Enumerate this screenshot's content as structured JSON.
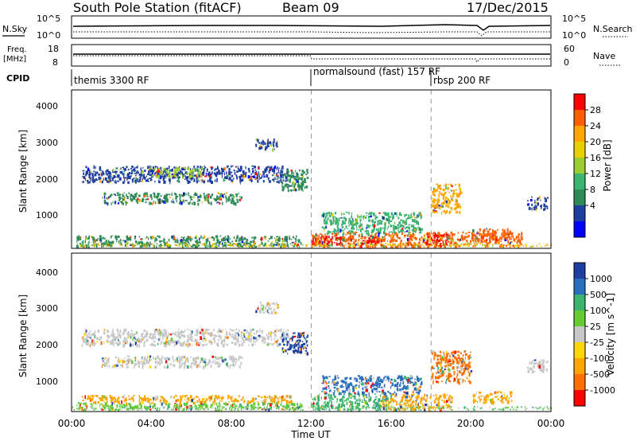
{
  "header": {
    "title": "South Pole Station (fitACF)",
    "beam": "Beam 09",
    "date": "17/Dec/2015"
  },
  "aux_panels": {
    "nsky": {
      "label": "N.Sky",
      "ticks": [
        "10^5",
        "10^0"
      ],
      "right_label": "N.Search",
      "right_ticks": [
        "10^5",
        "10^0"
      ]
    },
    "freq": {
      "label_1": "Freq.",
      "label_2": "[MHz]",
      "ticks": [
        "18",
        "8"
      ],
      "right_label": "Nave",
      "right_ticks": [
        "60",
        "0"
      ]
    },
    "cpid": {
      "label": "CPID",
      "segments": [
        {
          "name": "themis 3300 RF",
          "start_hour": 0
        },
        {
          "name": "normalsound (fast) 157 RF",
          "start_hour": 12
        },
        {
          "name": "rbsp 200 RF",
          "start_hour": 18
        }
      ]
    }
  },
  "colorbars": {
    "power": {
      "label": "Power [dB]",
      "ticks": [
        "28",
        "24",
        "20",
        "16",
        "12",
        "8",
        "4"
      ],
      "colors": [
        "#ff0000",
        "#ff6000",
        "#ffa500",
        "#e8d000",
        "#9acd32",
        "#3cb371",
        "#2e8b57",
        "#1e3fa0",
        "#0000ff"
      ]
    },
    "velocity": {
      "label": "Velocity [m s^-1]",
      "ticks": [
        "1000",
        "500",
        "100",
        "25",
        "-25",
        "-100",
        "-500",
        "-1000"
      ],
      "colors": [
        "#1e3fa0",
        "#2a6fbd",
        "#3cb371",
        "#66cc33",
        "#c8c8c8",
        "#ffd700",
        "#ffa500",
        "#ff7000",
        "#ff0000"
      ]
    }
  },
  "chart_data": [
    {
      "type": "heatmap",
      "name": "power",
      "ylabel": "Slant Range [km]",
      "ylim": [
        180,
        4600
      ],
      "yticks": [
        "4000",
        "3000",
        "2000",
        "1000"
      ],
      "x_range_hours": [
        0,
        24
      ],
      "blobs": [
        {
          "t0": 0.2,
          "t1": 11.5,
          "r0": 250,
          "r1": 550,
          "c": "#2e8b57"
        },
        {
          "t0": 0.5,
          "t1": 10.8,
          "r0": 2050,
          "r1": 2500,
          "c": "#1e3fa0"
        },
        {
          "t0": 4.0,
          "t1": 6.5,
          "r0": 2200,
          "r1": 2450,
          "c": "#9acd32"
        },
        {
          "t0": 1.5,
          "t1": 8.5,
          "r0": 1450,
          "r1": 1750,
          "c": "#2e8b57"
        },
        {
          "t0": 9.2,
          "t1": 10.3,
          "r0": 2950,
          "r1": 3250,
          "c": "#1e3fa0"
        },
        {
          "t0": 10.5,
          "t1": 11.8,
          "r0": 1800,
          "r1": 2400,
          "c": "#2e8b57"
        },
        {
          "t0": 12.0,
          "t1": 22.5,
          "r0": 250,
          "r1": 650,
          "c": "#ff6000"
        },
        {
          "t0": 12.0,
          "t1": 13.5,
          "r0": 300,
          "r1": 550,
          "c": "#ff0000"
        },
        {
          "t0": 17.5,
          "t1": 18.8,
          "r0": 300,
          "r1": 600,
          "c": "#ff0000"
        },
        {
          "t0": 14.5,
          "t1": 15.5,
          "r0": 300,
          "r1": 550,
          "c": "#ff0000"
        },
        {
          "t0": 12.5,
          "t1": 17.5,
          "r0": 600,
          "r1": 1200,
          "c": "#3cb371"
        },
        {
          "t0": 18.0,
          "t1": 19.5,
          "r0": 1200,
          "r1": 2000,
          "c": "#ffa500"
        },
        {
          "t0": 22.8,
          "t1": 23.8,
          "r0": 1300,
          "r1": 1650,
          "c": "#1e3fa0"
        },
        {
          "t0": 20.0,
          "t1": 22.0,
          "r0": 450,
          "r1": 750,
          "c": "#ff6000"
        }
      ]
    },
    {
      "type": "heatmap",
      "name": "velocity",
      "ylabel": "Slant Range [km]",
      "ylim": [
        180,
        4600
      ],
      "yticks": [
        "4000",
        "3000",
        "2000",
        "1000"
      ],
      "x_range_hours": [
        0,
        24
      ],
      "blobs": [
        {
          "t0": 0.2,
          "t1": 11.5,
          "r0": 250,
          "r1": 450,
          "c": "#66cc33"
        },
        {
          "t0": 0.5,
          "t1": 10.8,
          "r0": 2050,
          "r1": 2500,
          "c": "#c8c8c8"
        },
        {
          "t0": 1.5,
          "t1": 8.5,
          "r0": 1450,
          "r1": 1750,
          "c": "#c8c8c8"
        },
        {
          "t0": 9.2,
          "t1": 10.3,
          "r0": 2950,
          "r1": 3250,
          "c": "#c8c8c8"
        },
        {
          "t0": 10.5,
          "t1": 11.8,
          "r0": 1800,
          "r1": 2400,
          "c": "#1e3fa0"
        },
        {
          "t0": 0.5,
          "t1": 11.0,
          "r0": 450,
          "r1": 650,
          "c": "#ffa500"
        },
        {
          "t0": 12.0,
          "t1": 16.0,
          "r0": 250,
          "r1": 700,
          "c": "#3cb371"
        },
        {
          "t0": 15.5,
          "t1": 19.0,
          "r0": 250,
          "r1": 700,
          "c": "#ffa500"
        },
        {
          "t0": 12.5,
          "t1": 17.5,
          "r0": 700,
          "r1": 1200,
          "c": "#2a6fbd"
        },
        {
          "t0": 18.0,
          "t1": 20.0,
          "r0": 1000,
          "r1": 1900,
          "c": "#ff7000"
        },
        {
          "t0": 22.8,
          "t1": 23.8,
          "r0": 1300,
          "r1": 1650,
          "c": "#c8c8c8"
        },
        {
          "t0": 20.0,
          "t1": 22.0,
          "r0": 450,
          "r1": 750,
          "c": "#ffa500"
        }
      ]
    }
  ],
  "x_axis": {
    "ticks": [
      "00:00",
      "04:00",
      "08:00",
      "12:00",
      "16:00",
      "20:00",
      "00:00"
    ],
    "label": "Time UT"
  }
}
